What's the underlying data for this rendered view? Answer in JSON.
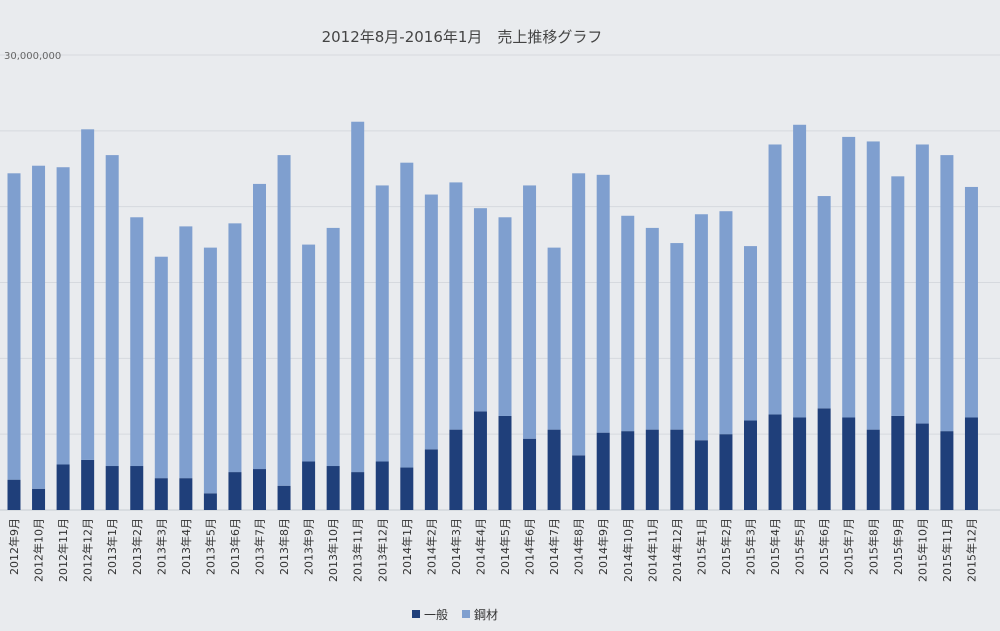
{
  "chart_data": {
    "type": "bar",
    "stacked": true,
    "title": "2012年8月-2016年1月　売上推移グラフ",
    "ylim": [
      0,
      30000000
    ],
    "y_ticks": [
      0,
      5000000,
      10000000,
      15000000,
      20000000,
      25000000,
      30000000
    ],
    "y_tick_labels": [
      "",
      "",
      "",
      "",
      "",
      "",
      "30,000,000"
    ],
    "grid": true,
    "legend_position": "bottom",
    "categories": [
      "2012年9月",
      "2012年10月",
      "2012年11月",
      "2012年12月",
      "2013年1月",
      "2013年2月",
      "2013年3月",
      "2013年4月",
      "2013年5月",
      "2013年6月",
      "2013年7月",
      "2013年8月",
      "2013年9月",
      "2013年10月",
      "2013年11月",
      "2013年12月",
      "2014年1月",
      "2014年2月",
      "2014年3月",
      "2014年4月",
      "2014年5月",
      "2014年6月",
      "2014年7月",
      "2014年8月",
      "2014年9月",
      "2014年10月",
      "2014年11月",
      "2014年12月",
      "2015年1月",
      "2015年2月",
      "2015年3月",
      "2015年4月",
      "2015年5月",
      "2015年6月",
      "2015年7月",
      "2015年8月",
      "2015年9月",
      "2015年10月",
      "2015年11月",
      "2015年12月"
    ],
    "series": [
      {
        "name": "一般",
        "color": "#1f3f7a",
        "values": [
          2000000,
          1400000,
          3000000,
          3300000,
          2900000,
          2900000,
          2100000,
          2100000,
          1100000,
          2500000,
          2700000,
          1600000,
          3200000,
          2900000,
          2500000,
          3200000,
          2800000,
          4000000,
          5300000,
          6500000,
          6200000,
          4700000,
          5300000,
          3600000,
          5100000,
          5200000,
          5300000,
          5300000,
          4600000,
          5000000,
          5900000,
          6300000,
          6100000,
          6700000,
          6100000,
          5300000,
          6200000,
          5700000,
          5200000,
          6100000
        ]
      },
      {
        "name": "鋼材",
        "color": "#7f9fcf",
        "values": [
          20200000,
          21300000,
          19600000,
          21800000,
          20500000,
          16400000,
          14600000,
          16600000,
          16200000,
          16400000,
          18800000,
          21800000,
          14300000,
          15700000,
          23100000,
          18200000,
          20100000,
          16800000,
          16300000,
          13400000,
          13100000,
          16700000,
          12000000,
          18600000,
          17000000,
          14200000,
          13300000,
          12300000,
          14900000,
          14700000,
          11500000,
          17800000,
          19300000,
          14000000,
          18500000,
          19000000,
          15800000,
          18400000,
          18200000,
          15200000
        ]
      }
    ]
  }
}
